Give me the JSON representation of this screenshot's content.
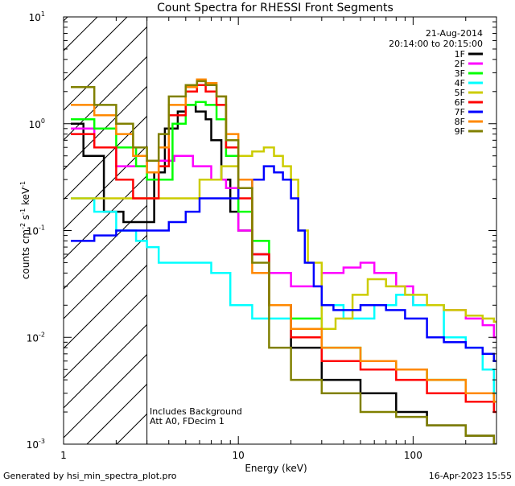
{
  "chart_data": {
    "type": "line",
    "title": "Count Spectra for RHESSI Front Segments",
    "xlabel": "Energy (keV)",
    "ylabel_base": "counts cm",
    "ylabel_parts": [
      "-2",
      " s",
      "-1",
      " keV",
      "-1"
    ],
    "x_scale": "log",
    "y_scale": "log",
    "xlim": [
      1,
      300
    ],
    "ylim": [
      0.001,
      10
    ],
    "x_ticks": [
      {
        "value": 1,
        "label": "1"
      },
      {
        "value": 10,
        "label": "10"
      },
      {
        "value": 100,
        "label": "100"
      }
    ],
    "y_ticks": [
      {
        "value": 0.001,
        "base": "10",
        "exp": "-3"
      },
      {
        "value": 0.01,
        "base": "10",
        "exp": "-2"
      },
      {
        "value": 0.1,
        "base": "10",
        "exp": "-1"
      },
      {
        "value": 1,
        "base": "10",
        "exp": "0"
      },
      {
        "value": 10,
        "base": "10",
        "exp": "1"
      }
    ],
    "date": "21-Aug-2014",
    "time_range": "20:14:00 to 20:15:00",
    "hatched_region_max_keV": 3,
    "annotations": [
      "Includes Background",
      "Att A0, FDecim 1"
    ],
    "series": [
      {
        "name": "1F",
        "color": "#000000",
        "points": [
          [
            1.1,
            1.0
          ],
          [
            1.3,
            0.5
          ],
          [
            1.7,
            0.15
          ],
          [
            2.2,
            0.12
          ],
          [
            2.6,
            0.12
          ],
          [
            3.0,
            0.12
          ],
          [
            3.3,
            0.35
          ],
          [
            3.8,
            0.9
          ],
          [
            4.5,
            1.3
          ],
          [
            5.0,
            1.5
          ],
          [
            5.7,
            1.3
          ],
          [
            6.5,
            1.1
          ],
          [
            7.0,
            0.7
          ],
          [
            8.0,
            0.3
          ],
          [
            9.0,
            0.15
          ],
          [
            10,
            0.1
          ],
          [
            12,
            0.06
          ],
          [
            15,
            0.02
          ],
          [
            20,
            0.008
          ],
          [
            30,
            0.004
          ],
          [
            50,
            0.003
          ],
          [
            80,
            0.002
          ],
          [
            120,
            0.0015
          ],
          [
            200,
            0.0012
          ],
          [
            290,
            0.001
          ]
        ]
      },
      {
        "name": "2F",
        "color": "#ff00ff",
        "points": [
          [
            1.1,
            0.9
          ],
          [
            1.5,
            0.6
          ],
          [
            2.0,
            0.4
          ],
          [
            3.0,
            0.45
          ],
          [
            3.6,
            0.45
          ],
          [
            4.3,
            0.5
          ],
          [
            5.5,
            0.4
          ],
          [
            7.0,
            0.3
          ],
          [
            8.5,
            0.25
          ],
          [
            10,
            0.1
          ],
          [
            12,
            0.06
          ],
          [
            15,
            0.04
          ],
          [
            20,
            0.03
          ],
          [
            25,
            0.03
          ],
          [
            30,
            0.04
          ],
          [
            40,
            0.045
          ],
          [
            50,
            0.05
          ],
          [
            60,
            0.04
          ],
          [
            80,
            0.03
          ],
          [
            100,
            0.02
          ],
          [
            150,
            0.018
          ],
          [
            200,
            0.015
          ],
          [
            250,
            0.013
          ],
          [
            290,
            0.01
          ]
        ]
      },
      {
        "name": "3F",
        "color": "#00ff00",
        "points": [
          [
            1.1,
            1.1
          ],
          [
            1.5,
            0.9
          ],
          [
            2.0,
            0.6
          ],
          [
            2.6,
            0.4
          ],
          [
            3.0,
            0.3
          ],
          [
            3.6,
            0.3
          ],
          [
            4.2,
            1.0
          ],
          [
            5.0,
            1.5
          ],
          [
            5.7,
            1.6
          ],
          [
            6.5,
            1.5
          ],
          [
            7.5,
            1.1
          ],
          [
            8.5,
            0.5
          ],
          [
            10,
            0.15
          ],
          [
            12,
            0.08
          ],
          [
            15,
            0.02
          ],
          [
            20,
            0.015
          ],
          [
            30,
            0.008
          ],
          [
            50,
            0.006
          ],
          [
            80,
            0.005
          ],
          [
            120,
            0.004
          ],
          [
            200,
            0.003
          ],
          [
            290,
            0.0025
          ]
        ]
      },
      {
        "name": "4F",
        "color": "#00ffff",
        "points": [
          [
            1.1,
            0.2
          ],
          [
            1.5,
            0.15
          ],
          [
            2.0,
            0.1
          ],
          [
            2.6,
            0.08
          ],
          [
            3.0,
            0.07
          ],
          [
            3.5,
            0.05
          ],
          [
            5.0,
            0.05
          ],
          [
            7.0,
            0.04
          ],
          [
            8.0,
            0.04
          ],
          [
            9.0,
            0.02
          ],
          [
            10,
            0.02
          ],
          [
            12,
            0.015
          ],
          [
            16,
            0.015
          ],
          [
            20,
            0.01
          ],
          [
            30,
            0.02
          ],
          [
            40,
            0.015
          ],
          [
            60,
            0.02
          ],
          [
            80,
            0.025
          ],
          [
            100,
            0.02
          ],
          [
            150,
            0.01
          ],
          [
            200,
            0.008
          ],
          [
            250,
            0.005
          ],
          [
            290,
            0.003
          ]
        ]
      },
      {
        "name": "5F",
        "color": "#cccc00",
        "points": [
          [
            1.1,
            0.2
          ],
          [
            2.0,
            0.2
          ],
          [
            3.0,
            0.2
          ],
          [
            4.5,
            0.2
          ],
          [
            6.0,
            0.3
          ],
          [
            8.0,
            0.4
          ],
          [
            10,
            0.5
          ],
          [
            12,
            0.55
          ],
          [
            14,
            0.6
          ],
          [
            16,
            0.5
          ],
          [
            18,
            0.4
          ],
          [
            20,
            0.3
          ],
          [
            22,
            0.1
          ],
          [
            25,
            0.05
          ],
          [
            30,
            0.012
          ],
          [
            36,
            0.015
          ],
          [
            45,
            0.025
          ],
          [
            55,
            0.035
          ],
          [
            70,
            0.03
          ],
          [
            90,
            0.025
          ],
          [
            120,
            0.02
          ],
          [
            150,
            0.018
          ],
          [
            200,
            0.016
          ],
          [
            250,
            0.015
          ],
          [
            290,
            0.014
          ]
        ]
      },
      {
        "name": "6F",
        "color": "#ff0000",
        "points": [
          [
            1.1,
            0.8
          ],
          [
            1.5,
            0.6
          ],
          [
            2.0,
            0.3
          ],
          [
            2.5,
            0.2
          ],
          [
            3.0,
            0.2
          ],
          [
            3.5,
            0.4
          ],
          [
            4.0,
            1.2
          ],
          [
            5.0,
            2.0
          ],
          [
            5.8,
            2.3
          ],
          [
            6.5,
            2.0
          ],
          [
            7.5,
            1.5
          ],
          [
            8.5,
            0.6
          ],
          [
            10,
            0.2
          ],
          [
            12,
            0.06
          ],
          [
            15,
            0.02
          ],
          [
            20,
            0.01
          ],
          [
            30,
            0.006
          ],
          [
            50,
            0.005
          ],
          [
            80,
            0.004
          ],
          [
            120,
            0.003
          ],
          [
            200,
            0.0025
          ],
          [
            290,
            0.002
          ]
        ]
      },
      {
        "name": "7F",
        "color": "#0000ff",
        "points": [
          [
            1.1,
            0.08
          ],
          [
            1.5,
            0.09
          ],
          [
            2.0,
            0.1
          ],
          [
            3.0,
            0.1
          ],
          [
            4.0,
            0.12
          ],
          [
            5.0,
            0.15
          ],
          [
            6.0,
            0.2
          ],
          [
            7.0,
            0.2
          ],
          [
            8.5,
            0.2
          ],
          [
            10,
            0.25
          ],
          [
            12,
            0.3
          ],
          [
            14,
            0.4
          ],
          [
            16,
            0.35
          ],
          [
            18,
            0.3
          ],
          [
            20,
            0.2
          ],
          [
            22,
            0.1
          ],
          [
            24,
            0.05
          ],
          [
            27,
            0.03
          ],
          [
            30,
            0.02
          ],
          [
            35,
            0.018
          ],
          [
            50,
            0.02
          ],
          [
            70,
            0.018
          ],
          [
            90,
            0.015
          ],
          [
            120,
            0.01
          ],
          [
            150,
            0.009
          ],
          [
            200,
            0.008
          ],
          [
            250,
            0.007
          ],
          [
            290,
            0.006
          ]
        ]
      },
      {
        "name": "8F",
        "color": "#ff8800",
        "points": [
          [
            1.1,
            1.5
          ],
          [
            1.5,
            1.2
          ],
          [
            2.0,
            0.8
          ],
          [
            2.5,
            0.5
          ],
          [
            3.0,
            0.35
          ],
          [
            3.5,
            0.6
          ],
          [
            4.0,
            1.5
          ],
          [
            5.0,
            2.2
          ],
          [
            5.8,
            2.6
          ],
          [
            6.5,
            2.4
          ],
          [
            7.5,
            1.8
          ],
          [
            8.5,
            0.8
          ],
          [
            10,
            0.3
          ],
          [
            12,
            0.04
          ],
          [
            15,
            0.02
          ],
          [
            20,
            0.012
          ],
          [
            30,
            0.008
          ],
          [
            50,
            0.006
          ],
          [
            80,
            0.005
          ],
          [
            120,
            0.004
          ],
          [
            200,
            0.003
          ],
          [
            290,
            0.0025
          ]
        ]
      },
      {
        "name": "9F",
        "color": "#808000",
        "points": [
          [
            1.1,
            2.2
          ],
          [
            1.5,
            1.5
          ],
          [
            2.0,
            1.0
          ],
          [
            2.5,
            0.6
          ],
          [
            3.0,
            0.45
          ],
          [
            3.5,
            0.8
          ],
          [
            4.0,
            1.8
          ],
          [
            5.0,
            2.3
          ],
          [
            5.8,
            2.5
          ],
          [
            6.5,
            2.3
          ],
          [
            7.5,
            1.8
          ],
          [
            8.5,
            0.7
          ],
          [
            10,
            0.25
          ],
          [
            12,
            0.05
          ],
          [
            15,
            0.008
          ],
          [
            20,
            0.004
          ],
          [
            30,
            0.003
          ],
          [
            50,
            0.002
          ],
          [
            80,
            0.0018
          ],
          [
            120,
            0.0015
          ],
          [
            200,
            0.0012
          ],
          [
            290,
            0.001
          ]
        ]
      }
    ]
  },
  "footer": {
    "generated_by": "Generated by hsi_min_spectra_plot.pro",
    "timestamp": "16-Apr-2023 15:55"
  }
}
